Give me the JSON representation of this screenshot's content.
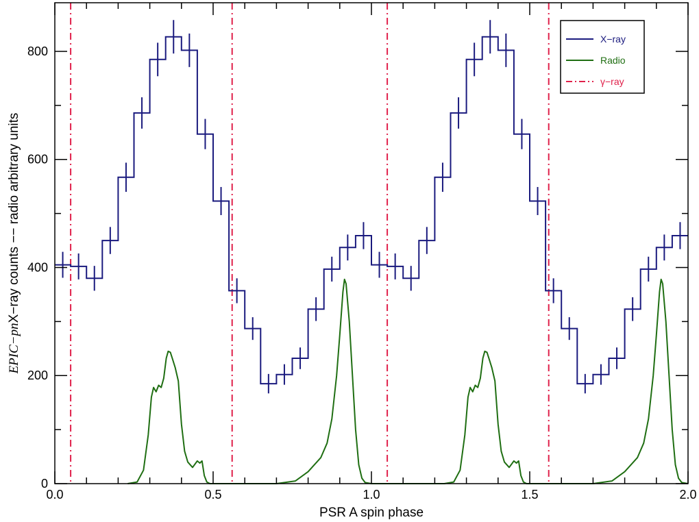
{
  "chart_data": {
    "type": "line",
    "xlabel": "PSR A spin phase",
    "ylabel_prefix": "EPIC−pn",
    "ylabel_rest": "X−ray counts −− radio arbitrary units",
    "xlim": [
      0.0,
      2.0
    ],
    "ylim": [
      0,
      890
    ],
    "xticks": [
      0.0,
      0.5,
      1.0,
      1.5,
      2.0
    ],
    "xtick_labels": [
      "0.0",
      "0.5",
      "1.0",
      "1.5",
      "2.0"
    ],
    "yticks": [
      0,
      200,
      400,
      600,
      800
    ],
    "ytick_labels": [
      "0",
      "200",
      "400",
      "600",
      "800"
    ],
    "grid": false,
    "legend_position": "top-right",
    "colors": {
      "xray": "#1a1a7e",
      "radio": "#1f6e12",
      "gamma": "#e0204a"
    },
    "series": [
      {
        "name": "X−ray",
        "style": "step-with-errorbars",
        "bin_width": 0.05,
        "bin_centers": [
          0.025,
          0.075,
          0.125,
          0.175,
          0.225,
          0.275,
          0.325,
          0.375,
          0.425,
          0.475,
          0.525,
          0.575,
          0.625,
          0.675,
          0.725,
          0.775,
          0.825,
          0.875,
          0.925,
          0.975
        ],
        "values": [
          405,
          402,
          380,
          450,
          567,
          686,
          785,
          827,
          802,
          647,
          523,
          357,
          287,
          185,
          202,
          232,
          323,
          397,
          437,
          459
        ],
        "errors": [
          24,
          24,
          23,
          25,
          27,
          29,
          31,
          31,
          31,
          28,
          26,
          23,
          21,
          18,
          19,
          20,
          22,
          23,
          24,
          25
        ]
      },
      {
        "name": "Radio",
        "style": "line",
        "x": [
          0.23,
          0.26,
          0.28,
          0.295,
          0.305,
          0.312,
          0.32,
          0.328,
          0.336,
          0.344,
          0.352,
          0.358,
          0.365,
          0.372,
          0.38,
          0.39,
          0.4,
          0.41,
          0.42,
          0.435,
          0.45,
          0.458,
          0.465,
          0.472,
          0.48,
          0.49,
          0.5,
          0.6,
          0.7,
          0.76,
          0.8,
          0.84,
          0.86,
          0.875,
          0.89,
          0.9,
          0.91,
          0.915,
          0.92,
          0.93,
          0.94,
          0.95,
          0.96,
          0.97,
          0.98,
          1.0,
          1.23,
          1.26,
          1.28,
          1.295,
          1.305,
          1.312,
          1.32,
          1.328,
          1.336,
          1.344,
          1.352,
          1.358,
          1.365,
          1.372,
          1.38,
          1.39,
          1.4,
          1.41,
          1.42,
          1.435,
          1.45,
          1.458,
          1.465,
          1.472,
          1.48,
          1.49,
          1.5,
          1.6,
          1.7,
          1.76,
          1.8,
          1.84,
          1.86,
          1.875,
          1.89,
          1.9,
          1.91,
          1.915,
          1.92,
          1.93,
          1.94,
          1.95,
          1.96,
          1.97,
          1.98,
          2.0
        ],
        "values": [
          0,
          3,
          25,
          90,
          160,
          178,
          170,
          182,
          178,
          195,
          232,
          245,
          243,
          230,
          215,
          190,
          110,
          60,
          40,
          30,
          42,
          38,
          42,
          15,
          3,
          0,
          0,
          0,
          0,
          5,
          22,
          48,
          75,
          120,
          200,
          275,
          355,
          378,
          370,
          300,
          200,
          100,
          35,
          10,
          2,
          0,
          0,
          3,
          25,
          90,
          160,
          178,
          170,
          182,
          178,
          195,
          232,
          245,
          243,
          230,
          215,
          190,
          110,
          60,
          40,
          30,
          42,
          38,
          42,
          15,
          3,
          0,
          0,
          0,
          0,
          5,
          22,
          48,
          75,
          120,
          200,
          275,
          355,
          378,
          370,
          300,
          200,
          100,
          35,
          10,
          2,
          0
        ]
      },
      {
        "name": "γ−ray",
        "style": "vertical-dash-dot-lines",
        "x": [
          0.05,
          0.56,
          1.05,
          1.56
        ]
      }
    ]
  }
}
